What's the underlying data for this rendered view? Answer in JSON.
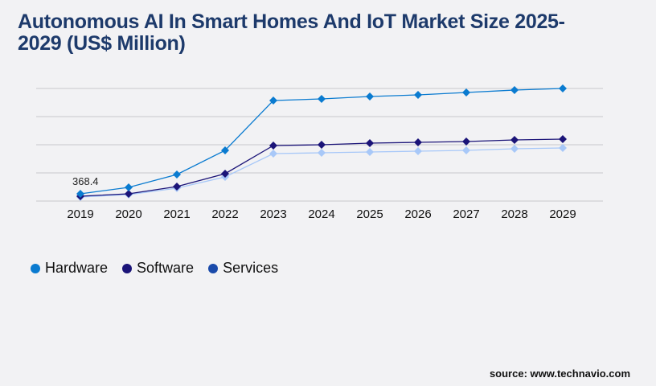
{
  "chart_data": {
    "type": "line",
    "title": "Autonomous AI In Smart Homes And IoT Market Size 2025-2029 (US$ Million)",
    "categories": [
      "2019",
      "2020",
      "2021",
      "2022",
      "2023",
      "2024",
      "2025",
      "2026",
      "2027",
      "2028",
      "2029"
    ],
    "series": [
      {
        "name": "Hardware",
        "color": "#0a7bd0",
        "values": [
          368.4,
          696,
          1351,
          2579,
          5117,
          5199,
          5322,
          5404,
          5527,
          5650,
          5731
        ]
      },
      {
        "name": "Software",
        "color": "#1b1478",
        "values": [
          246,
          368,
          737,
          1392,
          2825,
          2866,
          2947,
          2988,
          3029,
          3111,
          3152
        ]
      },
      {
        "name": "Services",
        "color": "#a8c8f8",
        "legend_color": "#1a4aaa",
        "values": [
          205,
          327,
          655,
          1228,
          2415,
          2456,
          2497,
          2538,
          2579,
          2661,
          2702
        ]
      }
    ],
    "data_labels": [
      {
        "series": "Hardware",
        "category": "2019",
        "text": "368.4"
      }
    ],
    "ylim": [
      0,
      5731
    ],
    "y_ticks_shown": false,
    "grid": true,
    "legend": "bottom-left"
  },
  "source": "source: www.technavio.com"
}
